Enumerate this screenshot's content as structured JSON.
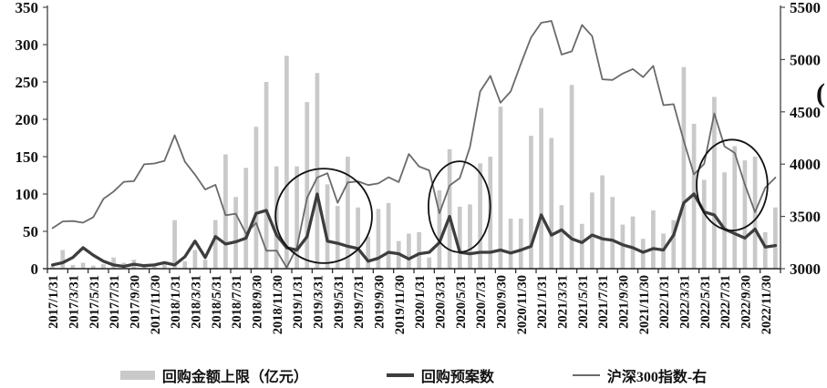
{
  "chart_data": {
    "type": "combo",
    "title": "",
    "x_tick_labels": [
      "2017/1/31",
      "2017/3/31",
      "2017/5/31",
      "2017/7/31",
      "2017/9/30",
      "2017/11/30",
      "2018/1/31",
      "2018/3/31",
      "2018/5/31",
      "2018/7/31",
      "2018/9/30",
      "2018/11/30",
      "2019/1/31",
      "2019/3/31",
      "2019/5/31",
      "2019/7/31",
      "2019/9/30",
      "2019/11/30",
      "2020/1/31",
      "2020/3/31",
      "2020/5/31",
      "2020/7/31",
      "2020/9/30",
      "2020/11/30",
      "2021/1/31",
      "2021/3/31",
      "2021/5/31",
      "2021/7/31",
      "2021/9/30",
      "2021/11/30",
      "2022/1/31",
      "2022/3/31",
      "2022/5/31",
      "2022/7/31",
      "2022/9/30",
      "2022/11/30"
    ],
    "months_per_tick": 2,
    "left_axis": {
      "min": 0,
      "max": 350,
      "ticks": [
        0,
        50,
        100,
        150,
        200,
        250,
        300,
        350
      ]
    },
    "right_axis": {
      "min": 3000,
      "max": 5500,
      "ticks": [
        3000,
        3500,
        4000,
        4500,
        5000,
        5500
      ],
      "unit_fragment": "("
    },
    "series": [
      {
        "name": "回购金额上限（亿元）",
        "type": "bar",
        "axis": "left",
        "color": "#c9c9c9",
        "values": [
          3,
          25,
          5,
          8,
          4,
          6,
          15,
          8,
          12,
          4,
          6,
          9,
          65,
          10,
          25,
          12,
          65,
          153,
          96,
          135,
          190,
          250,
          137,
          285,
          137,
          223,
          262,
          113,
          84,
          150,
          82,
          43,
          80,
          88,
          37,
          47,
          49,
          15,
          105,
          160,
          83,
          86,
          141,
          150,
          217,
          67,
          67,
          178,
          215,
          175,
          85,
          246,
          60,
          102,
          125,
          96,
          59,
          70,
          40,
          78,
          47,
          65,
          270,
          194,
          119,
          230,
          129,
          164,
          145,
          150,
          49,
          82
        ]
      },
      {
        "name": "回购预案数",
        "type": "line",
        "axis": "left",
        "color": "#3d3d3d",
        "stroke_width": 3.3,
        "values": [
          5,
          8,
          15,
          28,
          18,
          10,
          5,
          3,
          6,
          4,
          5,
          8,
          5,
          16,
          37,
          15,
          43,
          33,
          36,
          41,
          74,
          78,
          45,
          28,
          25,
          43,
          100,
          37,
          34,
          30,
          27,
          10,
          14,
          22,
          20,
          13,
          20,
          22,
          35,
          70,
          22,
          20,
          22,
          22,
          25,
          21,
          25,
          30,
          72,
          45,
          52,
          40,
          35,
          45,
          40,
          38,
          32,
          28,
          22,
          27,
          25,
          45,
          88,
          100,
          76,
          72,
          53,
          47,
          41,
          53,
          29,
          31
        ]
      },
      {
        "name": "沪深300指数-右",
        "type": "line",
        "axis": "right",
        "color": "#6a6a6a",
        "stroke_width": 1.8,
        "values": [
          3388,
          3452,
          3456,
          3440,
          3493,
          3667,
          3738,
          3831,
          3837,
          3998,
          4006,
          4031,
          4276,
          4023,
          3899,
          3757,
          3802,
          3511,
          3525,
          3335,
          3439,
          3172,
          3173,
          3011,
          3202,
          3678,
          3872,
          3913,
          3630,
          3825,
          3835,
          3800,
          3815,
          3875,
          3828,
          4097,
          3977,
          3940,
          3530,
          3795,
          3867,
          4163,
          4695,
          4844,
          4587,
          4695,
          4961,
          5211,
          5352,
          5369,
          5048,
          5078,
          5331,
          5224,
          4811,
          4805,
          4866,
          4909,
          4832,
          4940,
          4564,
          4573,
          4223,
          3902,
          4003,
          4485,
          4170,
          4107,
          3805,
          3541,
          3775,
          3871
        ]
      }
    ],
    "annotations": {
      "color": "#111111",
      "circles": [
        {
          "cx_frac": 0.377,
          "cy_frac": 0.798,
          "rx_frac": 0.0658,
          "ry_frac": 0.181
        },
        {
          "cx_frac": 0.562,
          "cy_frac": 0.763,
          "rx_frac": 0.0422,
          "ry_frac": 0.174
        },
        {
          "cx_frac": 0.934,
          "cy_frac": 0.68,
          "rx_frac": 0.0484,
          "ry_frac": 0.174
        }
      ]
    },
    "legend_position": "bottom",
    "grid": false
  }
}
